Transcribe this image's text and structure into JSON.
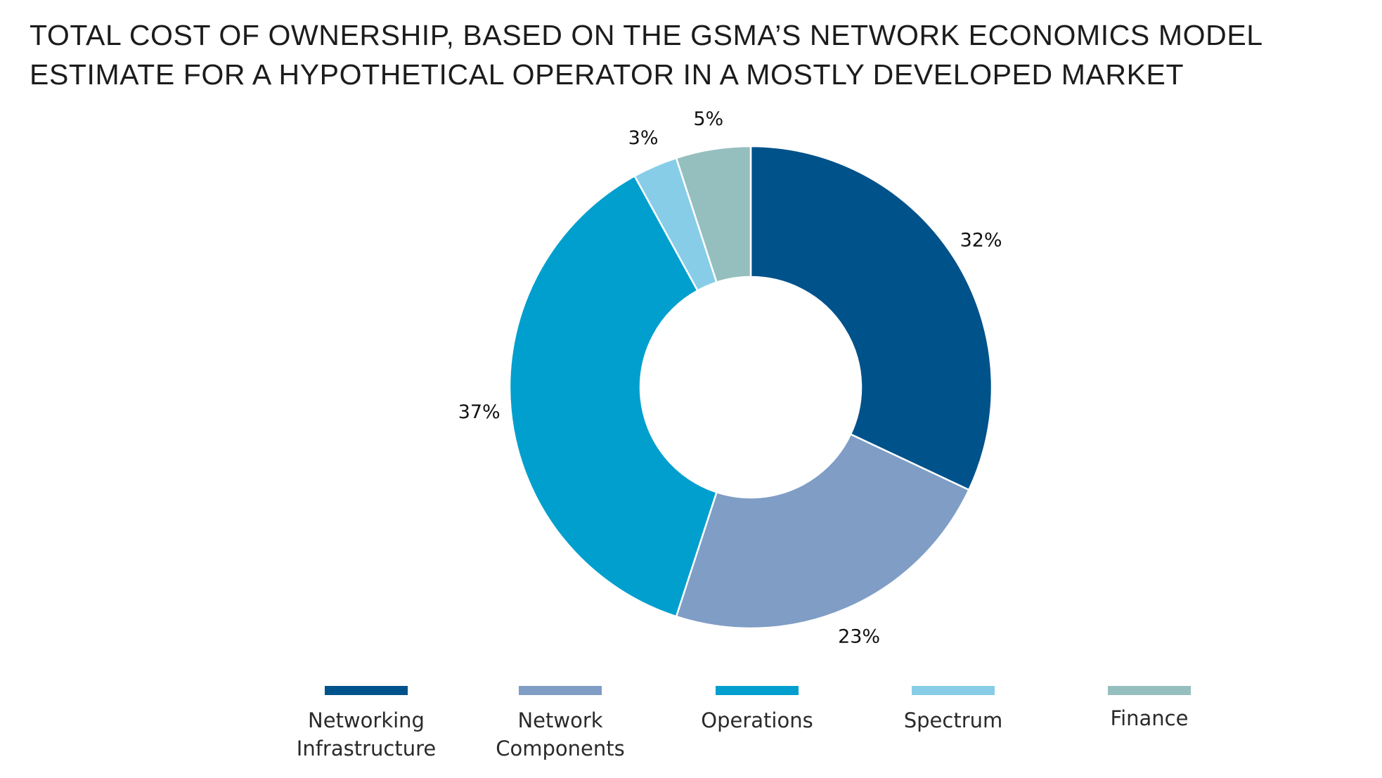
{
  "title_lines": [
    "TOTAL COST OF OWNERSHIP, BASED ON THE GSMA’S NETWORK ECONOMICS MODEL",
    "ESTIMATE FOR A HYPOTHETICAL OPERATOR IN A MOSTLY DEVELOPED MARKET"
  ],
  "chart_data": {
    "type": "pie",
    "variant": "donut",
    "title": "TOTAL COST OF OWNERSHIP, BASED ON THE GSMA’S NETWORK ECONOMICS MODEL ESTIMATE FOR A HYPOTHETICAL OPERATOR IN A MOSTLY DEVELOPED MARKET",
    "legend_position": "bottom",
    "slices": [
      {
        "name": "Networking Infrastructure",
        "legend_lines": [
          "Networking",
          "Infrastructure"
        ],
        "value": 32,
        "label": "32%",
        "color": "#00528B"
      },
      {
        "name": "Network Components",
        "legend_lines": [
          "Network",
          "Components"
        ],
        "value": 23,
        "label": "23%",
        "color": "#7F9DC5"
      },
      {
        "name": "Operations",
        "legend_lines": [
          "Operations"
        ],
        "value": 37,
        "label": "37%",
        "color": "#009FCE"
      },
      {
        "name": "Spectrum",
        "legend_lines": [
          "Spectrum"
        ],
        "value": 3,
        "label": "3%",
        "color": "#87CDE8"
      },
      {
        "name": "Finance",
        "legend_lines": [
          "Finance"
        ],
        "value": 5,
        "label": "5%",
        "color": "#95BFBE"
      }
    ]
  }
}
